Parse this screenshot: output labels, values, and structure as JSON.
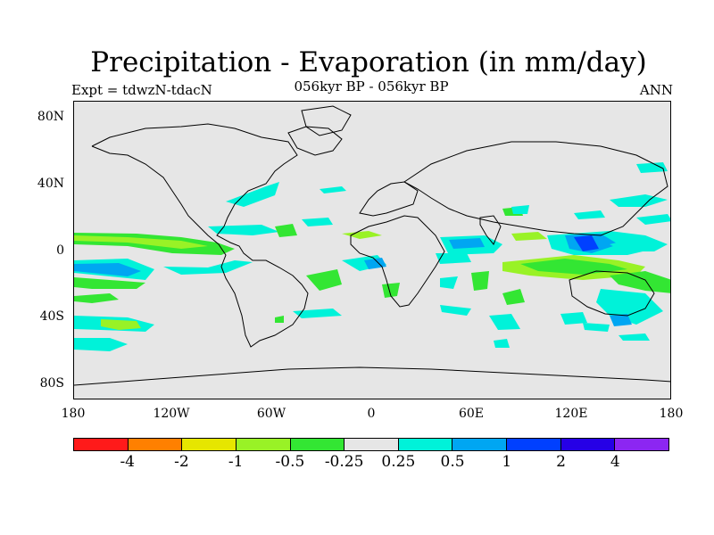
{
  "title": "Precipitation - Evaporation (in mm/day)",
  "subtitle": "056kyr BP - 056kyr BP",
  "left_label": "Expt = tdwzN-tdacN",
  "right_label": "ANN",
  "y_ticks": [
    "80N",
    "40N",
    "0",
    "40S",
    "80S"
  ],
  "x_ticks": [
    "180",
    "120W",
    "60W",
    "0",
    "60E",
    "120E",
    "180"
  ],
  "colorbar": {
    "colors": [
      "#ff1a1a",
      "#ff8000",
      "#e6e600",
      "#99f226",
      "#33e633",
      "#e6e6e6",
      "#00f2d9",
      "#00a6f2",
      "#0040ff",
      "#2600e6",
      "#8c26f2"
    ],
    "labels": [
      "-4",
      "-2",
      "-1",
      "-0.5",
      "-0.25",
      "0.25",
      "0.5",
      "1",
      "2",
      "4"
    ]
  },
  "map_colors": {
    "land_fill": "#e6e6e6",
    "coast": "#000000",
    "green": "#33e633",
    "lightgreen": "#99f226",
    "cyan": "#00f2d9",
    "blue": "#00a6f2",
    "darkblue": "#0040ff"
  }
}
